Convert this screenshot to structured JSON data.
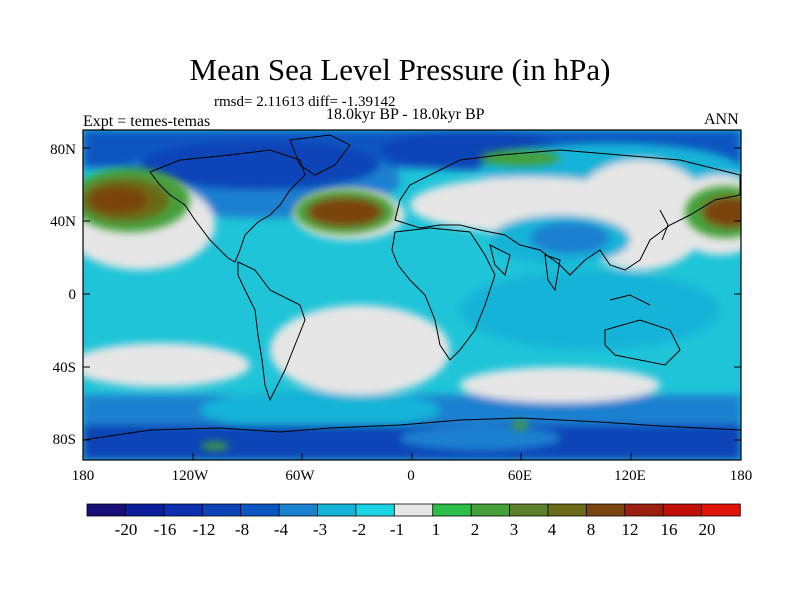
{
  "title": "Mean Sea Level Pressure (in hPa)",
  "stats": "rmsd= 2.11613 diff= -1.39142",
  "period": "18.0kyr BP - 18.0kyr BP",
  "experiment": "Expt = temes-temas",
  "season": "ANN",
  "lat_labels": [
    "80N",
    "40N",
    "0",
    "40S",
    "80S"
  ],
  "lon_labels": [
    "180",
    "120W",
    "60W",
    "0",
    "60E",
    "120E",
    "180"
  ],
  "colorbar": {
    "levels": [
      "-20",
      "-16",
      "-12",
      "-8",
      "-4",
      "-3",
      "-2",
      "-1",
      "1",
      "2",
      "3",
      "4",
      "8",
      "12",
      "16",
      "20"
    ],
    "colors": [
      "#1a0f7a",
      "#0b1e9c",
      "#0d2fb0",
      "#0c44b8",
      "#0a57c2",
      "#1a80d0",
      "#16b3d8",
      "#1ad3e3",
      "#e6e6e6",
      "#2dbe4a",
      "#45a03a",
      "#5c7f2a",
      "#6a6a18",
      "#7a4410",
      "#9c2010",
      "#c01008",
      "#e01408"
    ]
  },
  "palette": {
    "ocean_base": "#1fc4d8",
    "light_cyan": "#16b3d8",
    "mid_blue": "#1a80d0",
    "deep_blue": "#0c44b8",
    "navy": "#0b1e9c",
    "neutral": "#e6e6e6",
    "green": "#45a03a",
    "olive": "#6a6a18",
    "brown": "#7a4410"
  }
}
